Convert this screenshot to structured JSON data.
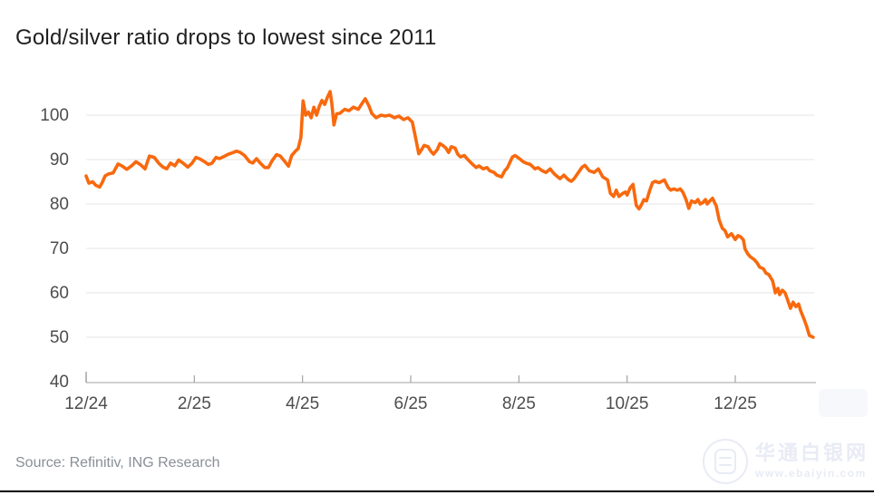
{
  "page": {
    "title": "Gold/silver ratio drops to lowest since 2011",
    "source": "Source: Refinitiv, ING Research",
    "watermark": {
      "site_name": "华通白银网",
      "site_url": "www.ebaiyin.com"
    }
  },
  "chart_data": {
    "type": "line",
    "title": "Gold/silver ratio drops to lowest since 2011",
    "xlabel": "",
    "ylabel": "",
    "x_unit": "months since 12/2024",
    "x_range": [
      0,
      13.5
    ],
    "y_range": [
      40,
      105.5
    ],
    "grid": true,
    "legend": "none",
    "x_ticks": [
      {
        "m": 0,
        "label": "12/24"
      },
      {
        "m": 2,
        "label": "2/25"
      },
      {
        "m": 4,
        "label": "4/25"
      },
      {
        "m": 6,
        "label": "6/25"
      },
      {
        "m": 8,
        "label": "8/25"
      },
      {
        "m": 10,
        "label": "10/25"
      },
      {
        "m": 12,
        "label": "12/25"
      }
    ],
    "y_ticks": [
      40,
      50,
      60,
      70,
      80,
      90,
      100
    ],
    "line_color": "#f8690e",
    "grid_color": "#e5e5e5",
    "axis_color": "#c2c2c2",
    "tick_color": "#a3a3a3",
    "label_color": "#4d4d4d",
    "series": [
      {
        "name": "Gold/silver ratio",
        "points": [
          [
            0.0,
            86.3
          ],
          [
            0.05,
            84.7
          ],
          [
            0.12,
            85.0
          ],
          [
            0.18,
            84.2
          ],
          [
            0.25,
            83.8
          ],
          [
            0.3,
            84.9
          ],
          [
            0.35,
            86.3
          ],
          [
            0.42,
            86.8
          ],
          [
            0.5,
            87.0
          ],
          [
            0.59,
            89.0
          ],
          [
            0.67,
            88.5
          ],
          [
            0.75,
            87.8
          ],
          [
            0.84,
            88.6
          ],
          [
            0.92,
            89.5
          ],
          [
            1.01,
            88.8
          ],
          [
            1.09,
            87.9
          ],
          [
            1.17,
            90.8
          ],
          [
            1.26,
            90.5
          ],
          [
            1.34,
            89.2
          ],
          [
            1.42,
            88.3
          ],
          [
            1.49,
            87.9
          ],
          [
            1.56,
            89.2
          ],
          [
            1.64,
            88.6
          ],
          [
            1.71,
            89.9
          ],
          [
            1.79,
            89.2
          ],
          [
            1.88,
            88.3
          ],
          [
            1.96,
            89.2
          ],
          [
            2.03,
            90.5
          ],
          [
            2.11,
            90.1
          ],
          [
            2.2,
            89.4
          ],
          [
            2.26,
            88.9
          ],
          [
            2.33,
            89.2
          ],
          [
            2.4,
            90.5
          ],
          [
            2.46,
            90.2
          ],
          [
            2.55,
            90.7
          ],
          [
            2.63,
            91.2
          ],
          [
            2.72,
            91.6
          ],
          [
            2.78,
            91.9
          ],
          [
            2.85,
            91.6
          ],
          [
            2.93,
            90.9
          ],
          [
            3.02,
            89.5
          ],
          [
            3.08,
            89.2
          ],
          [
            3.15,
            90.2
          ],
          [
            3.22,
            89.2
          ],
          [
            3.3,
            88.2
          ],
          [
            3.37,
            88.2
          ],
          [
            3.44,
            89.8
          ],
          [
            3.52,
            91.1
          ],
          [
            3.59,
            90.8
          ],
          [
            3.65,
            89.9
          ],
          [
            3.74,
            88.5
          ],
          [
            3.8,
            90.9
          ],
          [
            3.87,
            91.9
          ],
          [
            3.92,
            92.5
          ],
          [
            3.97,
            95.0
          ],
          [
            4.01,
            103.2
          ],
          [
            4.06,
            100.0
          ],
          [
            4.11,
            100.7
          ],
          [
            4.16,
            99.4
          ],
          [
            4.21,
            101.8
          ],
          [
            4.26,
            100.0
          ],
          [
            4.31,
            102.0
          ],
          [
            4.36,
            103.3
          ],
          [
            4.41,
            102.4
          ],
          [
            4.46,
            104.0
          ],
          [
            4.51,
            105.3
          ],
          [
            4.54,
            102.8
          ],
          [
            4.58,
            97.8
          ],
          [
            4.63,
            100.3
          ],
          [
            4.69,
            100.4
          ],
          [
            4.78,
            101.3
          ],
          [
            4.86,
            101.0
          ],
          [
            4.94,
            101.8
          ],
          [
            5.03,
            101.3
          ],
          [
            5.11,
            102.8
          ],
          [
            5.16,
            103.7
          ],
          [
            5.23,
            102.0
          ],
          [
            5.28,
            100.4
          ],
          [
            5.36,
            99.4
          ],
          [
            5.45,
            100.0
          ],
          [
            5.53,
            99.8
          ],
          [
            5.61,
            100.0
          ],
          [
            5.7,
            99.4
          ],
          [
            5.78,
            99.8
          ],
          [
            5.87,
            99.0
          ],
          [
            5.95,
            99.4
          ],
          [
            6.03,
            98.4
          ],
          [
            6.08,
            95.5
          ],
          [
            6.15,
            91.3
          ],
          [
            6.2,
            92.2
          ],
          [
            6.25,
            93.2
          ],
          [
            6.32,
            92.9
          ],
          [
            6.37,
            91.9
          ],
          [
            6.42,
            91.2
          ],
          [
            6.49,
            92.2
          ],
          [
            6.54,
            93.6
          ],
          [
            6.59,
            93.2
          ],
          [
            6.65,
            92.6
          ],
          [
            6.7,
            91.6
          ],
          [
            6.75,
            92.9
          ],
          [
            6.82,
            92.6
          ],
          [
            6.87,
            91.2
          ],
          [
            6.92,
            90.6
          ],
          [
            6.99,
            90.9
          ],
          [
            7.04,
            90.2
          ],
          [
            7.12,
            89.2
          ],
          [
            7.21,
            88.2
          ],
          [
            7.26,
            88.6
          ],
          [
            7.34,
            87.9
          ],
          [
            7.41,
            88.2
          ],
          [
            7.46,
            87.5
          ],
          [
            7.54,
            87.1
          ],
          [
            7.59,
            86.5
          ],
          [
            7.68,
            86.1
          ],
          [
            7.74,
            87.5
          ],
          [
            7.79,
            88.2
          ],
          [
            7.88,
            90.6
          ],
          [
            7.93,
            90.9
          ],
          [
            8.01,
            90.2
          ],
          [
            8.08,
            89.5
          ],
          [
            8.13,
            89.2
          ],
          [
            8.21,
            88.9
          ],
          [
            8.3,
            87.9
          ],
          [
            8.35,
            88.2
          ],
          [
            8.43,
            87.5
          ],
          [
            8.5,
            87.1
          ],
          [
            8.58,
            87.9
          ],
          [
            8.63,
            87.1
          ],
          [
            8.68,
            86.5
          ],
          [
            8.76,
            85.7
          ],
          [
            8.83,
            86.5
          ],
          [
            8.92,
            85.4
          ],
          [
            8.97,
            85.1
          ],
          [
            9.02,
            85.7
          ],
          [
            9.1,
            87.1
          ],
          [
            9.17,
            88.3
          ],
          [
            9.22,
            88.7
          ],
          [
            9.3,
            87.5
          ],
          [
            9.39,
            87.1
          ],
          [
            9.47,
            87.9
          ],
          [
            9.55,
            86.1
          ],
          [
            9.64,
            85.4
          ],
          [
            9.69,
            82.4
          ],
          [
            9.75,
            81.7
          ],
          [
            9.8,
            83.1
          ],
          [
            9.85,
            81.7
          ],
          [
            9.92,
            82.4
          ],
          [
            9.97,
            82.7
          ],
          [
            10.0,
            82.0
          ],
          [
            10.06,
            83.7
          ],
          [
            10.11,
            84.4
          ],
          [
            10.17,
            79.7
          ],
          [
            10.22,
            78.9
          ],
          [
            10.26,
            79.7
          ],
          [
            10.31,
            81.0
          ],
          [
            10.36,
            80.7
          ],
          [
            10.42,
            83.1
          ],
          [
            10.47,
            84.8
          ],
          [
            10.52,
            85.1
          ],
          [
            10.59,
            84.8
          ],
          [
            10.64,
            85.1
          ],
          [
            10.69,
            85.4
          ],
          [
            10.76,
            83.7
          ],
          [
            10.81,
            83.1
          ],
          [
            10.86,
            83.4
          ],
          [
            10.93,
            83.1
          ],
          [
            10.98,
            83.4
          ],
          [
            11.03,
            82.7
          ],
          [
            11.09,
            81.0
          ],
          [
            11.14,
            79.0
          ],
          [
            11.19,
            80.7
          ],
          [
            11.26,
            80.3
          ],
          [
            11.31,
            81.0
          ],
          [
            11.35,
            80.0
          ],
          [
            11.4,
            80.3
          ],
          [
            11.45,
            81.0
          ],
          [
            11.48,
            80.0
          ],
          [
            11.53,
            80.7
          ],
          [
            11.58,
            81.3
          ],
          [
            11.65,
            79.5
          ],
          [
            11.7,
            76.5
          ],
          [
            11.76,
            74.5
          ],
          [
            11.81,
            74.0
          ],
          [
            11.86,
            72.6
          ],
          [
            11.93,
            73.3
          ],
          [
            12.0,
            72.0
          ],
          [
            12.05,
            72.9
          ],
          [
            12.1,
            72.6
          ],
          [
            12.15,
            71.9
          ],
          [
            12.18,
            69.9
          ],
          [
            12.23,
            68.8
          ],
          [
            12.28,
            68.1
          ],
          [
            12.35,
            67.5
          ],
          [
            12.4,
            66.8
          ],
          [
            12.45,
            65.8
          ],
          [
            12.52,
            65.4
          ],
          [
            12.57,
            64.4
          ],
          [
            12.62,
            64.1
          ],
          [
            12.69,
            62.7
          ],
          [
            12.74,
            60.0
          ],
          [
            12.79,
            61.0
          ],
          [
            12.82,
            59.6
          ],
          [
            12.87,
            60.6
          ],
          [
            12.92,
            60.0
          ],
          [
            12.95,
            59.0
          ],
          [
            13.02,
            56.5
          ],
          [
            13.07,
            57.9
          ],
          [
            13.12,
            56.9
          ],
          [
            13.17,
            57.5
          ],
          [
            13.21,
            55.9
          ],
          [
            13.27,
            54.1
          ],
          [
            13.32,
            52.4
          ],
          [
            13.37,
            50.4
          ],
          [
            13.44,
            50.0
          ]
        ]
      }
    ]
  }
}
